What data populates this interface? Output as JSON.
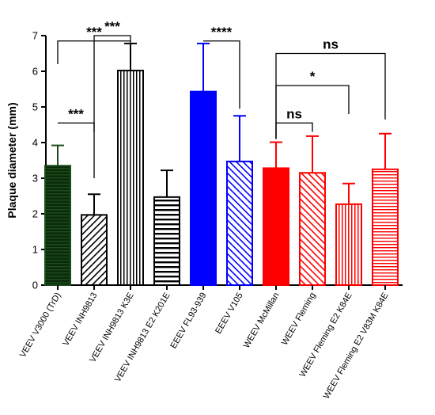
{
  "chart_data": {
    "type": "bar",
    "title": "",
    "xlabel": "",
    "ylabel": "Plaque diameter (mm)",
    "ylim": [
      0,
      7
    ],
    "yticks": [
      0,
      1,
      2,
      3,
      4,
      5,
      6,
      7
    ],
    "grid": false,
    "legend": "none",
    "categories": [
      "VEEV V3000 (TrD)",
      "VEEV INH9813",
      "VEEV INH9813 K3E",
      "VEEV INH9813 E2 K201E",
      "EEEV FL93-939",
      "EEEV V105",
      "WEEV McMillan",
      "WEEV Fleming",
      "WEEV Fleming E2 K84E",
      "WEEV Fleming E2 V83M K84E"
    ],
    "values": [
      3.35,
      1.97,
      6.02,
      2.47,
      5.43,
      3.47,
      3.28,
      3.15,
      2.27,
      3.25
    ],
    "errors": [
      0.57,
      0.58,
      0.76,
      0.75,
      1.35,
      1.28,
      0.73,
      1.03,
      0.58,
      1.0
    ],
    "bar_styles": [
      {
        "fill": "#1a4d1a",
        "pattern": "hlines",
        "color": "#1a4d1a"
      },
      {
        "fill": "#ffffff",
        "pattern": "diag-right",
        "color": "#000000"
      },
      {
        "fill": "#ffffff",
        "pattern": "vlines",
        "color": "#000000"
      },
      {
        "fill": "#ffffff",
        "pattern": "hlines-thick",
        "color": "#000000"
      },
      {
        "fill": "#0000ff",
        "pattern": "none",
        "color": "#0000ff"
      },
      {
        "fill": "#ffffff",
        "pattern": "diag-left",
        "color": "#0000ff"
      },
      {
        "fill": "#ff0000",
        "pattern": "none",
        "color": "#ff0000"
      },
      {
        "fill": "#ffffff",
        "pattern": "diag-left",
        "color": "#ff0000"
      },
      {
        "fill": "#ffffff",
        "pattern": "vlines",
        "color": "#ff0000"
      },
      {
        "fill": "#ffffff",
        "pattern": "hlines",
        "color": "#ff0000"
      }
    ],
    "annotations": [
      {
        "label": "***",
        "from": 0,
        "to": 1,
        "y": 4.55,
        "drop_left": 0.0,
        "drop_right": 0.25
      },
      {
        "label": "***",
        "from": 0,
        "to": 2,
        "y": 6.85,
        "drop_left": 0.65,
        "drop_right": 0.0
      },
      {
        "label": "***",
        "from": 1,
        "to": 2,
        "y": 7.0,
        "drop_left": 4.0,
        "drop_right": 0.2
      },
      {
        "label": "****",
        "from": 4,
        "to": 5,
        "y": 6.85,
        "drop_left": 0.0,
        "drop_right": 1.9
      },
      {
        "label": "ns",
        "from": 6,
        "to": 7,
        "y": 4.55,
        "drop_left": 0.45,
        "drop_right": 0.25
      },
      {
        "label": "*",
        "from": 6,
        "to": 8,
        "y": 5.6,
        "drop_left": 1.5,
        "drop_right": 0.8
      },
      {
        "label": "ns",
        "from": 6,
        "to": 9,
        "y": 6.5,
        "drop_left": 2.4,
        "drop_right": 1.85
      }
    ]
  }
}
